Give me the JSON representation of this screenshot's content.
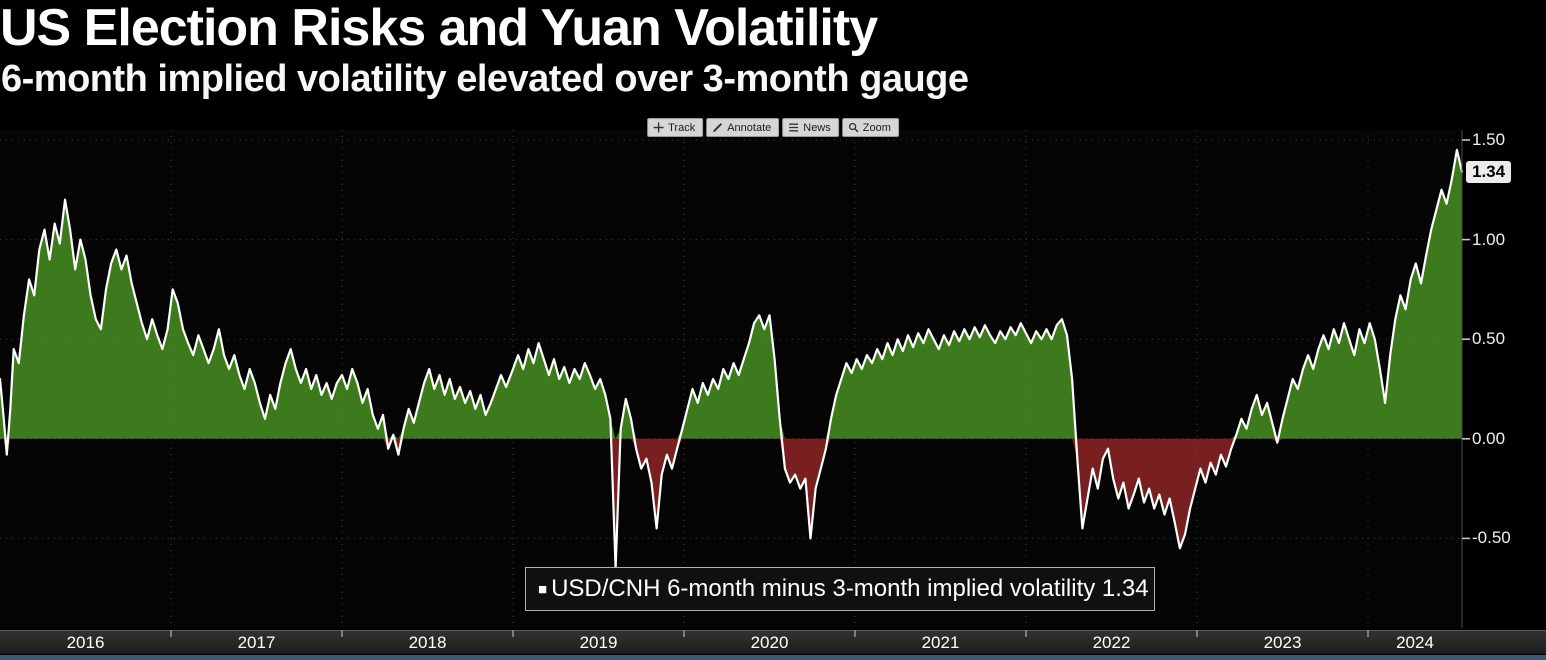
{
  "header": {
    "title": "US Election Risks and Yuan Volatility",
    "subtitle": "6-month implied volatility elevated over 3-month gauge"
  },
  "toolbar": {
    "buttons": [
      {
        "icon": "track-icon",
        "label": "Track"
      },
      {
        "icon": "annotate-icon",
        "label": "Annotate"
      },
      {
        "icon": "news-icon",
        "label": "News"
      },
      {
        "icon": "zoom-icon",
        "label": "Zoom"
      }
    ]
  },
  "legend": {
    "swatch": "■",
    "label": "USD/CNH 6-month minus 3-month implied volatility 1.34"
  },
  "chart_data": {
    "type": "area",
    "title": "US Election Risks and Yuan Volatility",
    "subtitle": "6-month implied volatility elevated over 3-month gauge",
    "series_name": "USD/CNH 6-month minus 3-month implied volatility",
    "last_value": 1.34,
    "last_value_label": "1.34",
    "x_range": [
      2016.0,
      2024.55
    ],
    "y_axis": {
      "range": [
        -0.95,
        1.55
      ],
      "ticks": [
        {
          "v": 1.5,
          "label": "1.50"
        },
        {
          "v": 1.0,
          "label": "1.00"
        },
        {
          "v": 0.5,
          "label": "0.50"
        },
        {
          "v": 0.0,
          "label": "0.00"
        },
        {
          "v": -0.5,
          "label": "-0.50"
        }
      ]
    },
    "x_axis": {
      "year_labels": [
        "2016",
        "2017",
        "2018",
        "2019",
        "2020",
        "2021",
        "2022",
        "2023",
        "2024"
      ]
    },
    "colors": {
      "positive_fill": "#3d7a1e",
      "negative_fill": "#7a1f1f",
      "line": "#ffffff",
      "background": "#000000",
      "badge_background": "#ececec"
    },
    "points": [
      [
        2016.0,
        0.3
      ],
      [
        2016.02,
        0.12
      ],
      [
        2016.04,
        -0.08
      ],
      [
        2016.06,
        0.15
      ],
      [
        2016.08,
        0.45
      ],
      [
        2016.11,
        0.38
      ],
      [
        2016.14,
        0.62
      ],
      [
        2016.17,
        0.8
      ],
      [
        2016.2,
        0.72
      ],
      [
        2016.23,
        0.95
      ],
      [
        2016.26,
        1.05
      ],
      [
        2016.29,
        0.9
      ],
      [
        2016.32,
        1.08
      ],
      [
        2016.35,
        0.98
      ],
      [
        2016.38,
        1.2
      ],
      [
        2016.41,
        1.05
      ],
      [
        2016.44,
        0.85
      ],
      [
        2016.47,
        1.0
      ],
      [
        2016.5,
        0.9
      ],
      [
        2016.53,
        0.72
      ],
      [
        2016.56,
        0.6
      ],
      [
        2016.59,
        0.55
      ],
      [
        2016.62,
        0.75
      ],
      [
        2016.65,
        0.88
      ],
      [
        2016.68,
        0.95
      ],
      [
        2016.71,
        0.85
      ],
      [
        2016.74,
        0.92
      ],
      [
        2016.77,
        0.78
      ],
      [
        2016.8,
        0.68
      ],
      [
        2016.83,
        0.58
      ],
      [
        2016.86,
        0.5
      ],
      [
        2016.89,
        0.6
      ],
      [
        2016.92,
        0.52
      ],
      [
        2016.95,
        0.45
      ],
      [
        2016.98,
        0.55
      ],
      [
        2017.01,
        0.75
      ],
      [
        2017.04,
        0.68
      ],
      [
        2017.07,
        0.55
      ],
      [
        2017.1,
        0.48
      ],
      [
        2017.13,
        0.42
      ],
      [
        2017.16,
        0.52
      ],
      [
        2017.19,
        0.45
      ],
      [
        2017.22,
        0.38
      ],
      [
        2017.25,
        0.45
      ],
      [
        2017.28,
        0.55
      ],
      [
        2017.31,
        0.42
      ],
      [
        2017.34,
        0.35
      ],
      [
        2017.37,
        0.42
      ],
      [
        2017.4,
        0.32
      ],
      [
        2017.43,
        0.25
      ],
      [
        2017.46,
        0.35
      ],
      [
        2017.49,
        0.28
      ],
      [
        2017.52,
        0.18
      ],
      [
        2017.55,
        0.1
      ],
      [
        2017.58,
        0.22
      ],
      [
        2017.61,
        0.15
      ],
      [
        2017.64,
        0.28
      ],
      [
        2017.67,
        0.38
      ],
      [
        2017.7,
        0.45
      ],
      [
        2017.73,
        0.35
      ],
      [
        2017.76,
        0.28
      ],
      [
        2017.79,
        0.35
      ],
      [
        2017.82,
        0.25
      ],
      [
        2017.85,
        0.32
      ],
      [
        2017.88,
        0.22
      ],
      [
        2017.91,
        0.28
      ],
      [
        2017.94,
        0.2
      ],
      [
        2017.97,
        0.28
      ],
      [
        2018.0,
        0.32
      ],
      [
        2018.03,
        0.25
      ],
      [
        2018.06,
        0.35
      ],
      [
        2018.09,
        0.28
      ],
      [
        2018.12,
        0.18
      ],
      [
        2018.15,
        0.25
      ],
      [
        2018.18,
        0.12
      ],
      [
        2018.21,
        0.05
      ],
      [
        2018.24,
        0.12
      ],
      [
        2018.27,
        -0.05
      ],
      [
        2018.3,
        0.02
      ],
      [
        2018.33,
        -0.08
      ],
      [
        2018.36,
        0.05
      ],
      [
        2018.39,
        0.15
      ],
      [
        2018.42,
        0.08
      ],
      [
        2018.45,
        0.18
      ],
      [
        2018.48,
        0.28
      ],
      [
        2018.51,
        0.35
      ],
      [
        2018.54,
        0.25
      ],
      [
        2018.57,
        0.32
      ],
      [
        2018.6,
        0.22
      ],
      [
        2018.63,
        0.3
      ],
      [
        2018.66,
        0.2
      ],
      [
        2018.69,
        0.26
      ],
      [
        2018.72,
        0.18
      ],
      [
        2018.75,
        0.24
      ],
      [
        2018.78,
        0.15
      ],
      [
        2018.81,
        0.22
      ],
      [
        2018.84,
        0.12
      ],
      [
        2018.87,
        0.18
      ],
      [
        2018.9,
        0.25
      ],
      [
        2018.93,
        0.32
      ],
      [
        2018.96,
        0.26
      ],
      [
        2019.0,
        0.35
      ],
      [
        2019.03,
        0.42
      ],
      [
        2019.06,
        0.35
      ],
      [
        2019.09,
        0.45
      ],
      [
        2019.12,
        0.38
      ],
      [
        2019.15,
        0.48
      ],
      [
        2019.18,
        0.4
      ],
      [
        2019.21,
        0.32
      ],
      [
        2019.24,
        0.4
      ],
      [
        2019.27,
        0.3
      ],
      [
        2019.3,
        0.36
      ],
      [
        2019.33,
        0.28
      ],
      [
        2019.36,
        0.35
      ],
      [
        2019.39,
        0.3
      ],
      [
        2019.42,
        0.38
      ],
      [
        2019.45,
        0.32
      ],
      [
        2019.48,
        0.25
      ],
      [
        2019.51,
        0.3
      ],
      [
        2019.54,
        0.22
      ],
      [
        2019.57,
        0.1
      ],
      [
        2019.6,
        -0.65
      ],
      [
        2019.63,
        0.05
      ],
      [
        2019.66,
        0.2
      ],
      [
        2019.69,
        0.1
      ],
      [
        2019.72,
        -0.05
      ],
      [
        2019.75,
        -0.15
      ],
      [
        2019.78,
        -0.1
      ],
      [
        2019.81,
        -0.22
      ],
      [
        2019.84,
        -0.45
      ],
      [
        2019.87,
        -0.18
      ],
      [
        2019.9,
        -0.08
      ],
      [
        2019.93,
        -0.15
      ],
      [
        2019.96,
        -0.05
      ],
      [
        2019.99,
        0.05
      ],
      [
        2020.02,
        0.15
      ],
      [
        2020.05,
        0.25
      ],
      [
        2020.08,
        0.18
      ],
      [
        2020.11,
        0.28
      ],
      [
        2020.14,
        0.22
      ],
      [
        2020.17,
        0.3
      ],
      [
        2020.2,
        0.25
      ],
      [
        2020.23,
        0.35
      ],
      [
        2020.26,
        0.3
      ],
      [
        2020.29,
        0.38
      ],
      [
        2020.32,
        0.32
      ],
      [
        2020.35,
        0.4
      ],
      [
        2020.38,
        0.48
      ],
      [
        2020.41,
        0.58
      ],
      [
        2020.44,
        0.62
      ],
      [
        2020.47,
        0.55
      ],
      [
        2020.5,
        0.62
      ],
      [
        2020.53,
        0.4
      ],
      [
        2020.56,
        0.1
      ],
      [
        2020.59,
        -0.15
      ],
      [
        2020.62,
        -0.22
      ],
      [
        2020.65,
        -0.18
      ],
      [
        2020.68,
        -0.25
      ],
      [
        2020.71,
        -0.2
      ],
      [
        2020.74,
        -0.5
      ],
      [
        2020.77,
        -0.25
      ],
      [
        2020.8,
        -0.15
      ],
      [
        2020.83,
        -0.05
      ],
      [
        2020.86,
        0.1
      ],
      [
        2020.89,
        0.22
      ],
      [
        2020.92,
        0.3
      ],
      [
        2020.95,
        0.38
      ],
      [
        2020.98,
        0.33
      ],
      [
        2021.01,
        0.4
      ],
      [
        2021.04,
        0.35
      ],
      [
        2021.07,
        0.42
      ],
      [
        2021.1,
        0.38
      ],
      [
        2021.13,
        0.45
      ],
      [
        2021.16,
        0.4
      ],
      [
        2021.19,
        0.48
      ],
      [
        2021.22,
        0.42
      ],
      [
        2021.25,
        0.5
      ],
      [
        2021.28,
        0.44
      ],
      [
        2021.31,
        0.52
      ],
      [
        2021.34,
        0.46
      ],
      [
        2021.37,
        0.53
      ],
      [
        2021.4,
        0.48
      ],
      [
        2021.43,
        0.55
      ],
      [
        2021.46,
        0.5
      ],
      [
        2021.49,
        0.45
      ],
      [
        2021.52,
        0.52
      ],
      [
        2021.55,
        0.47
      ],
      [
        2021.58,
        0.54
      ],
      [
        2021.61,
        0.49
      ],
      [
        2021.64,
        0.55
      ],
      [
        2021.67,
        0.5
      ],
      [
        2021.7,
        0.56
      ],
      [
        2021.73,
        0.51
      ],
      [
        2021.76,
        0.57
      ],
      [
        2021.79,
        0.52
      ],
      [
        2021.82,
        0.48
      ],
      [
        2021.85,
        0.54
      ],
      [
        2021.88,
        0.5
      ],
      [
        2021.91,
        0.56
      ],
      [
        2021.94,
        0.52
      ],
      [
        2021.97,
        0.58
      ],
      [
        2022.0,
        0.53
      ],
      [
        2022.03,
        0.48
      ],
      [
        2022.06,
        0.54
      ],
      [
        2022.09,
        0.5
      ],
      [
        2022.12,
        0.55
      ],
      [
        2022.15,
        0.5
      ],
      [
        2022.18,
        0.57
      ],
      [
        2022.21,
        0.6
      ],
      [
        2022.24,
        0.52
      ],
      [
        2022.27,
        0.3
      ],
      [
        2022.3,
        -0.1
      ],
      [
        2022.33,
        -0.45
      ],
      [
        2022.36,
        -0.3
      ],
      [
        2022.39,
        -0.15
      ],
      [
        2022.42,
        -0.25
      ],
      [
        2022.45,
        -0.1
      ],
      [
        2022.48,
        -0.05
      ],
      [
        2022.51,
        -0.2
      ],
      [
        2022.54,
        -0.3
      ],
      [
        2022.57,
        -0.22
      ],
      [
        2022.6,
        -0.35
      ],
      [
        2022.63,
        -0.28
      ],
      [
        2022.66,
        -0.2
      ],
      [
        2022.69,
        -0.32
      ],
      [
        2022.72,
        -0.25
      ],
      [
        2022.75,
        -0.35
      ],
      [
        2022.78,
        -0.28
      ],
      [
        2022.81,
        -0.38
      ],
      [
        2022.84,
        -0.3
      ],
      [
        2022.87,
        -0.42
      ],
      [
        2022.9,
        -0.55
      ],
      [
        2022.93,
        -0.48
      ],
      [
        2022.96,
        -0.35
      ],
      [
        2022.99,
        -0.25
      ],
      [
        2023.02,
        -0.15
      ],
      [
        2023.05,
        -0.22
      ],
      [
        2023.08,
        -0.12
      ],
      [
        2023.11,
        -0.18
      ],
      [
        2023.14,
        -0.08
      ],
      [
        2023.17,
        -0.14
      ],
      [
        2023.2,
        -0.05
      ],
      [
        2023.23,
        0.02
      ],
      [
        2023.26,
        0.1
      ],
      [
        2023.29,
        0.05
      ],
      [
        2023.32,
        0.15
      ],
      [
        2023.35,
        0.22
      ],
      [
        2023.38,
        0.12
      ],
      [
        2023.41,
        0.18
      ],
      [
        2023.44,
        0.08
      ],
      [
        2023.47,
        -0.02
      ],
      [
        2023.5,
        0.1
      ],
      [
        2023.53,
        0.2
      ],
      [
        2023.56,
        0.3
      ],
      [
        2023.59,
        0.25
      ],
      [
        2023.62,
        0.35
      ],
      [
        2023.65,
        0.42
      ],
      [
        2023.68,
        0.35
      ],
      [
        2023.71,
        0.45
      ],
      [
        2023.74,
        0.52
      ],
      [
        2023.77,
        0.45
      ],
      [
        2023.8,
        0.55
      ],
      [
        2023.83,
        0.48
      ],
      [
        2023.86,
        0.58
      ],
      [
        2023.89,
        0.5
      ],
      [
        2023.92,
        0.42
      ],
      [
        2023.95,
        0.55
      ],
      [
        2023.98,
        0.48
      ],
      [
        2024.01,
        0.58
      ],
      [
        2024.04,
        0.5
      ],
      [
        2024.07,
        0.35
      ],
      [
        2024.1,
        0.18
      ],
      [
        2024.13,
        0.42
      ],
      [
        2024.16,
        0.6
      ],
      [
        2024.19,
        0.72
      ],
      [
        2024.22,
        0.65
      ],
      [
        2024.25,
        0.8
      ],
      [
        2024.28,
        0.88
      ],
      [
        2024.31,
        0.78
      ],
      [
        2024.34,
        0.92
      ],
      [
        2024.37,
        1.05
      ],
      [
        2024.4,
        1.15
      ],
      [
        2024.43,
        1.25
      ],
      [
        2024.46,
        1.18
      ],
      [
        2024.49,
        1.3
      ],
      [
        2024.52,
        1.45
      ],
      [
        2024.55,
        1.34
      ]
    ]
  }
}
